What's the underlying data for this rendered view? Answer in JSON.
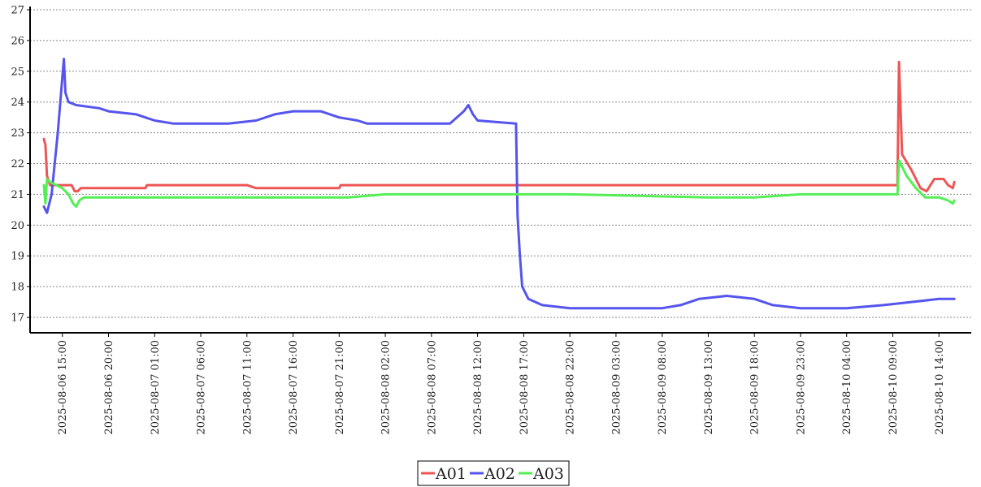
{
  "chart_data": {
    "type": "line",
    "title": "",
    "xlabel": "",
    "ylabel": "",
    "ylim": [
      16.5,
      27
    ],
    "y_ticks": [
      17,
      18,
      19,
      20,
      21,
      22,
      23,
      24,
      25,
      26,
      27
    ],
    "xlim": [
      "2025-08-06 11:30",
      "2025-08-10 17:30"
    ],
    "x_ticks": [
      "2025-08-06 15:00",
      "2025-08-06 20:00",
      "2025-08-07 01:00",
      "2025-08-07 06:00",
      "2025-08-07 11:00",
      "2025-08-07 16:00",
      "2025-08-07 21:00",
      "2025-08-08 02:00",
      "2025-08-08 07:00",
      "2025-08-08 12:00",
      "2025-08-08 17:00",
      "2025-08-08 22:00",
      "2025-08-09 03:00",
      "2025-08-09 08:00",
      "2025-08-09 13:00",
      "2025-08-09 18:00",
      "2025-08-09 23:00",
      "2025-08-10 04:00",
      "2025-08-10 09:00",
      "2025-08-10 14:00"
    ],
    "grid": "horizontal dashed",
    "legend_position": "bottom-center",
    "series": [
      {
        "name": "A01",
        "color": "#ee5555",
        "points": [
          [
            "2025-08-06 13:00",
            22.8
          ],
          [
            "2025-08-06 13:10",
            22.6
          ],
          [
            "2025-08-06 13:20",
            21.6
          ],
          [
            "2025-08-06 13:40",
            21.3
          ],
          [
            "2025-08-06 15:00",
            21.3
          ],
          [
            "2025-08-06 16:00",
            21.3
          ],
          [
            "2025-08-06 16:20",
            21.1
          ],
          [
            "2025-08-06 16:40",
            21.1
          ],
          [
            "2025-08-06 17:00",
            21.2
          ],
          [
            "2025-08-07 00:00",
            21.2
          ],
          [
            "2025-08-07 00:10",
            21.3
          ],
          [
            "2025-08-07 11:00",
            21.3
          ],
          [
            "2025-08-07 12:00",
            21.2
          ],
          [
            "2025-08-07 21:00",
            21.2
          ],
          [
            "2025-08-07 21:10",
            21.3
          ],
          [
            "2025-08-08 22:00",
            21.3
          ],
          [
            "2025-08-09 13:00",
            21.3
          ],
          [
            "2025-08-09 17:00",
            21.3
          ],
          [
            "2025-08-10 09:30",
            21.3
          ],
          [
            "2025-08-10 09:40",
            25.3
          ],
          [
            "2025-08-10 10:00",
            22.3
          ],
          [
            "2025-08-10 11:00",
            21.8
          ],
          [
            "2025-08-10 12:00",
            21.2
          ],
          [
            "2025-08-10 12:40",
            21.1
          ],
          [
            "2025-08-10 13:30",
            21.5
          ],
          [
            "2025-08-10 14:30",
            21.5
          ],
          [
            "2025-08-10 15:00",
            21.3
          ],
          [
            "2025-08-10 15:30",
            21.2
          ],
          [
            "2025-08-10 15:40",
            21.4
          ]
        ]
      },
      {
        "name": "A02",
        "color": "#5555ee",
        "points": [
          [
            "2025-08-06 13:00",
            20.6
          ],
          [
            "2025-08-06 13:20",
            20.4
          ],
          [
            "2025-08-06 13:50",
            21.0
          ],
          [
            "2025-08-06 14:30",
            23.0
          ],
          [
            "2025-08-06 15:00",
            24.8
          ],
          [
            "2025-08-06 15:10",
            25.4
          ],
          [
            "2025-08-06 15:20",
            24.3
          ],
          [
            "2025-08-06 15:40",
            24.0
          ],
          [
            "2025-08-06 16:30",
            23.9
          ],
          [
            "2025-08-06 19:00",
            23.8
          ],
          [
            "2025-08-06 20:00",
            23.7
          ],
          [
            "2025-08-06 23:00",
            23.6
          ],
          [
            "2025-08-07 00:00",
            23.5
          ],
          [
            "2025-08-07 01:00",
            23.4
          ],
          [
            "2025-08-07 03:00",
            23.3
          ],
          [
            "2025-08-07 09:00",
            23.3
          ],
          [
            "2025-08-07 12:00",
            23.4
          ],
          [
            "2025-08-07 14:00",
            23.6
          ],
          [
            "2025-08-07 16:00",
            23.7
          ],
          [
            "2025-08-07 19:00",
            23.7
          ],
          [
            "2025-08-07 21:00",
            23.5
          ],
          [
            "2025-08-07 23:00",
            23.4
          ],
          [
            "2025-08-08 00:00",
            23.3
          ],
          [
            "2025-08-08 09:00",
            23.3
          ],
          [
            "2025-08-08 10:30",
            23.7
          ],
          [
            "2025-08-08 11:00",
            23.9
          ],
          [
            "2025-08-08 11:30",
            23.6
          ],
          [
            "2025-08-08 12:00",
            23.4
          ],
          [
            "2025-08-08 16:10",
            23.3
          ],
          [
            "2025-08-08 16:20",
            20.3
          ],
          [
            "2025-08-08 16:35",
            19.0
          ],
          [
            "2025-08-08 16:50",
            18.0
          ],
          [
            "2025-08-08 17:30",
            17.6
          ],
          [
            "2025-08-08 19:00",
            17.4
          ],
          [
            "2025-08-08 22:00",
            17.3
          ],
          [
            "2025-08-09 03:00",
            17.3
          ],
          [
            "2025-08-09 08:00",
            17.3
          ],
          [
            "2025-08-09 10:00",
            17.4
          ],
          [
            "2025-08-09 12:00",
            17.6
          ],
          [
            "2025-08-09 15:00",
            17.7
          ],
          [
            "2025-08-09 18:00",
            17.6
          ],
          [
            "2025-08-09 20:00",
            17.4
          ],
          [
            "2025-08-09 23:00",
            17.3
          ],
          [
            "2025-08-10 04:00",
            17.3
          ],
          [
            "2025-08-10 08:00",
            17.4
          ],
          [
            "2025-08-10 11:00",
            17.5
          ],
          [
            "2025-08-10 14:00",
            17.6
          ],
          [
            "2025-08-10 15:40",
            17.6
          ]
        ]
      },
      {
        "name": "A03",
        "color": "#55ee55",
        "points": [
          [
            "2025-08-06 13:00",
            21.3
          ],
          [
            "2025-08-06 13:10",
            20.7
          ],
          [
            "2025-08-06 13:20",
            21.5
          ],
          [
            "2025-08-06 13:40",
            21.4
          ],
          [
            "2025-08-06 15:00",
            21.2
          ],
          [
            "2025-08-06 15:40",
            21.0
          ],
          [
            "2025-08-06 16:10",
            20.7
          ],
          [
            "2025-08-06 16:30",
            20.6
          ],
          [
            "2025-08-06 16:50",
            20.8
          ],
          [
            "2025-08-06 17:20",
            20.9
          ],
          [
            "2025-08-07 11:00",
            20.9
          ],
          [
            "2025-08-07 22:00",
            20.9
          ],
          [
            "2025-08-08 02:00",
            21.0
          ],
          [
            "2025-08-08 17:00",
            21.0
          ],
          [
            "2025-08-08 22:00",
            21.0
          ],
          [
            "2025-08-09 13:00",
            20.9
          ],
          [
            "2025-08-09 18:00",
            20.9
          ],
          [
            "2025-08-09 23:00",
            21.0
          ],
          [
            "2025-08-10 09:30",
            21.0
          ],
          [
            "2025-08-10 09:40",
            22.1
          ],
          [
            "2025-08-10 10:30",
            21.6
          ],
          [
            "2025-08-10 11:30",
            21.2
          ],
          [
            "2025-08-10 12:30",
            20.9
          ],
          [
            "2025-08-10 14:00",
            20.9
          ],
          [
            "2025-08-10 15:00",
            20.8
          ],
          [
            "2025-08-10 15:30",
            20.7
          ],
          [
            "2025-08-10 15:40",
            20.8
          ]
        ]
      }
    ]
  }
}
